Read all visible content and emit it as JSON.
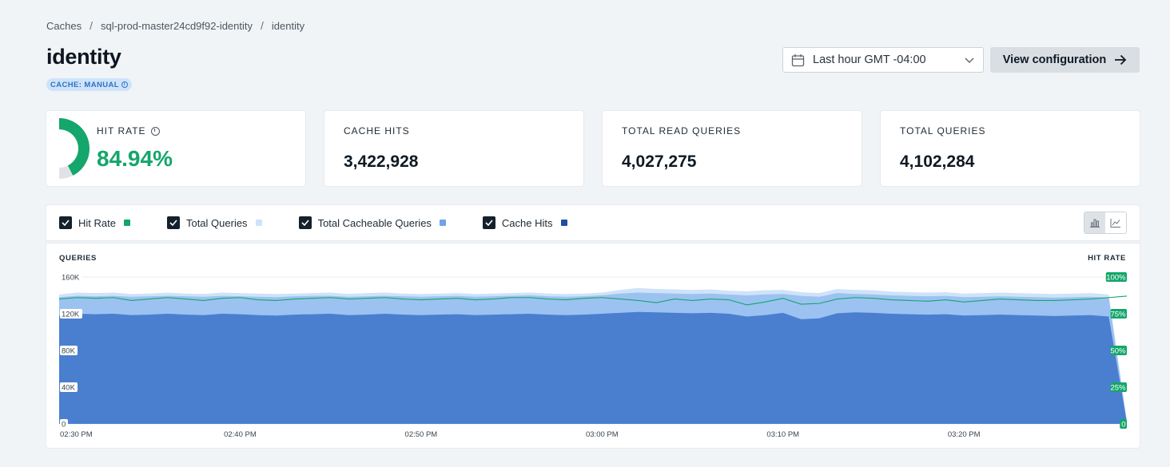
{
  "breadcrumb": [
    "Caches",
    "sql-prod-master24cd9f92-identity",
    "identity"
  ],
  "page": {
    "title": "identity",
    "badge": "CACHE: MANUAL"
  },
  "time_range": {
    "label": "Last hour GMT -04:00"
  },
  "actions": {
    "view_config": "View configuration"
  },
  "stats": {
    "hit_rate": {
      "label": "HIT RATE",
      "value": "84.94%",
      "fraction": 0.8494
    },
    "cache_hits": {
      "label": "CACHE HITS",
      "value": "3,422,928"
    },
    "total_read_queries": {
      "label": "TOTAL READ QUERIES",
      "value": "4,027,275"
    },
    "total_queries": {
      "label": "TOTAL QUERIES",
      "value": "4,102,284"
    }
  },
  "legend": [
    {
      "label": "Hit Rate",
      "color": "#14a66a",
      "checked": true
    },
    {
      "label": "Total Queries",
      "color": "#cfe3f8",
      "checked": true
    },
    {
      "label": "Total Cacheable Queries",
      "color": "#6fa3ea",
      "checked": true
    },
    {
      "label": "Cache Hits",
      "color": "#1f4fa3",
      "checked": true
    }
  ],
  "colors": {
    "accent_green": "#14a66a",
    "total_queries": "#cfe3f8",
    "cacheable": "#9cc2f2",
    "cache_hits": "#4a7fcf"
  },
  "chart_data": {
    "type": "area",
    "ylabel_left": "QUERIES",
    "ylabel_right": "HIT RATE",
    "y_ticks": [
      "0",
      "40K",
      "80K",
      "120K",
      "160K"
    ],
    "y2_ticks": [
      "0",
      "25%",
      "50%",
      "75%",
      "100%"
    ],
    "ylim": [
      0,
      160000
    ],
    "y2lim": [
      0,
      100
    ],
    "x_ticks": [
      "02:30 PM",
      "02:40 PM",
      "02:50 PM",
      "03:00 PM",
      "03:10 PM",
      "03:20 PM"
    ],
    "x_start_min": 0,
    "x_end_min": 59,
    "series": [
      {
        "name": "Total Queries",
        "values": [
          141000,
          143000,
          142500,
          143000,
          141500,
          142000,
          143000,
          142000,
          141500,
          143000,
          142500,
          142000,
          141500,
          142000,
          142500,
          143000,
          141500,
          142500,
          143000,
          142000,
          141500,
          142000,
          142500,
          141500,
          142000,
          142500,
          143000,
          142000,
          141500,
          142000,
          143000,
          146000,
          148000,
          147000,
          146500,
          146000,
          146500,
          145000,
          144500,
          145500,
          146000,
          143500,
          142500,
          147000,
          146000,
          145500,
          144000,
          143500,
          143000,
          143500,
          142000,
          142500,
          143000,
          142500,
          142000,
          141500,
          142000,
          142500,
          141000,
          3000
        ]
      },
      {
        "name": "Total Cacheable Queries",
        "values": [
          138000,
          139500,
          139000,
          139500,
          138500,
          139000,
          139500,
          139000,
          138500,
          139500,
          139000,
          138500,
          138000,
          139000,
          139500,
          139500,
          138500,
          139000,
          139500,
          139000,
          138500,
          139000,
          139500,
          138500,
          139000,
          139500,
          140000,
          139000,
          138500,
          139000,
          140000,
          142000,
          143000,
          142500,
          142000,
          141500,
          142000,
          141000,
          140000,
          141000,
          141500,
          139500,
          138500,
          142500,
          141500,
          141000,
          140000,
          139500,
          139000,
          139500,
          138000,
          138500,
          139000,
          138500,
          138000,
          137500,
          138000,
          138500,
          137500,
          2500
        ]
      },
      {
        "name": "Cache Hits",
        "values": [
          118000,
          120000,
          119500,
          120000,
          118500,
          119000,
          120000,
          119000,
          118500,
          120000,
          119500,
          118500,
          118000,
          119000,
          119500,
          120000,
          118500,
          119000,
          120000,
          119000,
          118500,
          119000,
          119500,
          118500,
          119000,
          119500,
          120000,
          119000,
          118500,
          119000,
          120000,
          121000,
          122000,
          121500,
          121000,
          120500,
          121000,
          120000,
          117000,
          118500,
          121000,
          114000,
          115000,
          120500,
          121500,
          121000,
          120000,
          119500,
          119000,
          119500,
          118000,
          118500,
          119000,
          118500,
          118000,
          117500,
          118000,
          118500,
          117000,
          2000
        ]
      },
      {
        "name": "Hit Rate",
        "values": [
          85,
          86,
          85.5,
          86,
          84,
          85,
          86,
          85,
          84,
          85.5,
          86,
          84.5,
          84,
          85,
          85.5,
          86,
          85,
          85.5,
          86,
          85,
          84.5,
          85,
          85.5,
          84.5,
          85,
          86,
          86,
          85,
          84.5,
          85.5,
          86,
          85,
          84,
          82.5,
          85,
          84,
          85,
          84.5,
          81,
          83,
          85.5,
          81.5,
          82,
          85,
          86,
          85.5,
          84.5,
          84,
          83.5,
          84.5,
          83,
          84,
          85,
          84.5,
          84,
          84,
          84.5,
          85,
          86,
          87
        ]
      }
    ],
    "grid": true,
    "legend": "top"
  }
}
